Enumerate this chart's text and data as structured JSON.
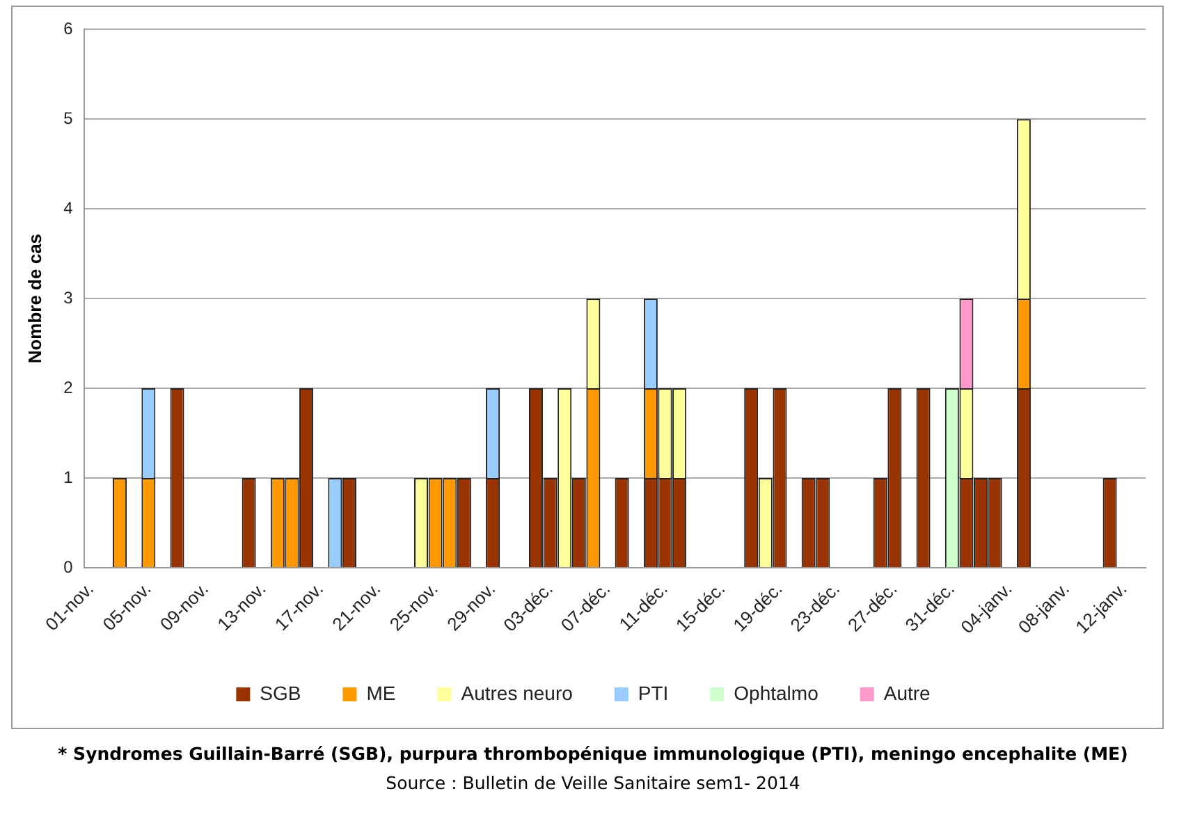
{
  "chart_data": {
    "type": "bar",
    "stacked": true,
    "ylabel": "Nombre de cas",
    "categories": [
      "01-nov.",
      null,
      null,
      null,
      "05-nov.",
      null,
      null,
      null,
      "09-nov.",
      null,
      null,
      null,
      "13-nov.",
      null,
      null,
      null,
      "17-nov.",
      null,
      null,
      null,
      "21-nov.",
      null,
      null,
      null,
      "25-nov.",
      null,
      null,
      null,
      "29-nov.",
      null,
      null,
      null,
      "03-déc.",
      null,
      null,
      null,
      "07-déc.",
      null,
      null,
      null,
      "11-déc.",
      null,
      null,
      null,
      "15-déc.",
      null,
      null,
      null,
      "19-déc.",
      null,
      null,
      null,
      "23-déc.",
      null,
      null,
      null,
      "27-déc.",
      null,
      null,
      null,
      "31-déc.",
      null,
      null,
      null,
      "04-janv.",
      null,
      null,
      null,
      "08-janv.",
      null,
      null,
      null,
      "12-janv.",
      null
    ],
    "series": [
      {
        "name": "SGB",
        "color": "#993300",
        "values": [
          0,
          0,
          0,
          0,
          0,
          0,
          2,
          0,
          0,
          0,
          0,
          1,
          0,
          0,
          0,
          2,
          0,
          0,
          1,
          0,
          0,
          0,
          0,
          0,
          0,
          0,
          1,
          0,
          1,
          0,
          0,
          2,
          1,
          0,
          1,
          0,
          0,
          1,
          0,
          1,
          1,
          1,
          0,
          0,
          0,
          0,
          2,
          0,
          2,
          0,
          1,
          1,
          0,
          0,
          0,
          1,
          2,
          0,
          2,
          0,
          0,
          1,
          1,
          1,
          0,
          2,
          0,
          0,
          0,
          0,
          0,
          1,
          0,
          0
        ]
      },
      {
        "name": "ME",
        "color": "#ff9900",
        "values": [
          0,
          0,
          1,
          0,
          1,
          0,
          0,
          0,
          0,
          0,
          0,
          0,
          0,
          1,
          1,
          0,
          0,
          0,
          0,
          0,
          0,
          0,
          0,
          0,
          1,
          1,
          0,
          0,
          0,
          0,
          0,
          0,
          0,
          0,
          0,
          2,
          0,
          0,
          0,
          1,
          0,
          0,
          0,
          0,
          0,
          0,
          0,
          0,
          0,
          0,
          0,
          0,
          0,
          0,
          0,
          0,
          0,
          0,
          0,
          0,
          0,
          0,
          0,
          0,
          0,
          1,
          0,
          0,
          0,
          0,
          0,
          0,
          0,
          0
        ]
      },
      {
        "name": "Autres neuro",
        "color": "#ffff99",
        "values": [
          0,
          0,
          0,
          0,
          0,
          0,
          0,
          0,
          0,
          0,
          0,
          0,
          0,
          0,
          0,
          0,
          0,
          0,
          0,
          0,
          0,
          0,
          0,
          1,
          0,
          0,
          0,
          0,
          0,
          0,
          0,
          0,
          0,
          2,
          0,
          1,
          0,
          0,
          0,
          0,
          1,
          1,
          0,
          0,
          0,
          0,
          0,
          1,
          0,
          0,
          0,
          0,
          0,
          0,
          0,
          0,
          0,
          0,
          0,
          0,
          0,
          1,
          0,
          0,
          0,
          2,
          0,
          0,
          0,
          0,
          0,
          0,
          0,
          0
        ]
      },
      {
        "name": "PTI",
        "color": "#99ccff",
        "values": [
          0,
          0,
          0,
          0,
          1,
          0,
          0,
          0,
          0,
          0,
          0,
          0,
          0,
          0,
          0,
          0,
          0,
          1,
          0,
          0,
          0,
          0,
          0,
          0,
          0,
          0,
          0,
          0,
          1,
          0,
          0,
          0,
          0,
          0,
          0,
          0,
          0,
          0,
          0,
          1,
          0,
          0,
          0,
          0,
          0,
          0,
          0,
          0,
          0,
          0,
          0,
          0,
          0,
          0,
          0,
          0,
          0,
          0,
          0,
          0,
          0,
          0,
          0,
          0,
          0,
          0,
          0,
          0,
          0,
          0,
          0,
          0,
          0,
          0
        ]
      },
      {
        "name": "Ophtalmo",
        "color": "#ccffcc",
        "values": [
          0,
          0,
          0,
          0,
          0,
          0,
          0,
          0,
          0,
          0,
          0,
          0,
          0,
          0,
          0,
          0,
          0,
          0,
          0,
          0,
          0,
          0,
          0,
          0,
          0,
          0,
          0,
          0,
          0,
          0,
          0,
          0,
          0,
          0,
          0,
          0,
          0,
          0,
          0,
          0,
          0,
          0,
          0,
          0,
          0,
          0,
          0,
          0,
          0,
          0,
          0,
          0,
          0,
          0,
          0,
          0,
          0,
          0,
          0,
          0,
          2,
          0,
          0,
          0,
          0,
          0,
          0,
          0,
          0,
          0,
          0,
          0,
          0,
          0
        ]
      },
      {
        "name": "Autre",
        "color": "#ff99cc",
        "values": [
          0,
          0,
          0,
          0,
          0,
          0,
          0,
          0,
          0,
          0,
          0,
          0,
          0,
          0,
          0,
          0,
          0,
          0,
          0,
          0,
          0,
          0,
          0,
          0,
          0,
          0,
          0,
          0,
          0,
          0,
          0,
          0,
          0,
          0,
          0,
          0,
          0,
          0,
          0,
          0,
          0,
          0,
          0,
          0,
          0,
          0,
          0,
          0,
          0,
          0,
          0,
          0,
          0,
          0,
          0,
          0,
          0,
          0,
          0,
          0,
          0,
          1,
          0,
          0,
          0,
          0,
          0,
          0,
          0,
          0,
          0,
          0,
          0,
          0
        ]
      }
    ],
    "ylim": [
      0,
      6
    ],
    "yticks": [
      0,
      1,
      2,
      3,
      4,
      5,
      6
    ],
    "grid": "y",
    "legend": "bottom",
    "annotations": [
      "* Syndromes Guillain-Barré (SGB), purpura thrombopénique immunologique (PTI),  meningo encephalite (ME)",
      "Source : Bulletin de Veille Sanitaire sem1- 2014"
    ]
  }
}
